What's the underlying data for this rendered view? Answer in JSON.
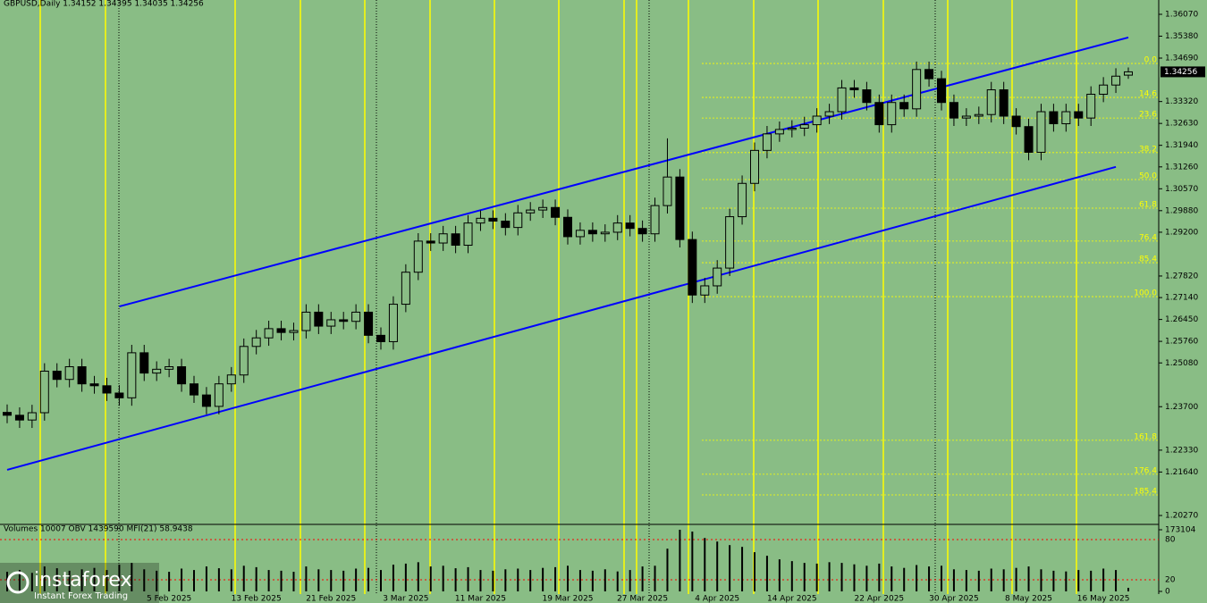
{
  "header": "GBPUSD,Daily  1.34152 1.34395 1.34035 1.34256",
  "watermark": {
    "brand": "instaforex",
    "tagline": "Instant Forex Trading"
  },
  "chart_data": [
    {
      "type": "candlestick",
      "last_price_label": "1.34256",
      "colors": {
        "up": "#89bd85",
        "down": "#000000",
        "outline": "#000000",
        "channel": "#0000ff",
        "fib": "#ffff00"
      },
      "categories": [
        null,
        null,
        null,
        null,
        null,
        null,
        null,
        null,
        null,
        null,
        null,
        null,
        null,
        "5 Feb 2025",
        null,
        null,
        null,
        null,
        null,
        null,
        "13 Feb 2025",
        null,
        null,
        null,
        null,
        null,
        "21 Feb 2025",
        null,
        null,
        null,
        null,
        null,
        "3 Mar 2025",
        null,
        null,
        null,
        null,
        null,
        "11 Mar 2025",
        null,
        null,
        null,
        null,
        null,
        null,
        "19 Mar 2025",
        null,
        null,
        null,
        null,
        null,
        "27 Mar 2025",
        null,
        null,
        null,
        null,
        null,
        "4 Apr 2025",
        null,
        null,
        null,
        null,
        null,
        "14 Apr 2025",
        null,
        null,
        null,
        null,
        null,
        null,
        "22 Apr 2025",
        null,
        null,
        null,
        null,
        null,
        "30 Apr 2025",
        null,
        null,
        null,
        null,
        null,
        "8 May 2025",
        null,
        null,
        null,
        null,
        null,
        "16 May 2025",
        null,
        null
      ],
      "open": [
        1.2352,
        1.2343,
        1.2328,
        1.2351,
        1.2482,
        1.2456,
        1.2496,
        1.2442,
        1.2436,
        1.2413,
        1.2398,
        1.254,
        1.2476,
        1.2488,
        1.2496,
        1.2442,
        1.2407,
        1.2371,
        1.2442,
        1.247,
        1.256,
        1.2587,
        1.2616,
        1.2604,
        1.261,
        1.2668,
        1.2624,
        1.2644,
        1.2639,
        1.2668,
        1.2595,
        1.2575,
        1.2693,
        1.2794,
        1.2892,
        1.2886,
        1.2915,
        1.2879,
        1.2949,
        1.2964,
        1.2955,
        1.2935,
        1.2981,
        1.299,
        1.2998,
        1.2967,
        1.2906,
        1.2926,
        1.2915,
        1.292,
        1.2949,
        1.2932,
        1.2915,
        1.3004,
        1.3094,
        1.2897,
        1.2722,
        1.2751,
        1.2807,
        1.2969,
        1.3074,
        1.3178,
        1.323,
        1.3244,
        1.3248,
        1.3259,
        1.3286,
        1.33,
        1.3375,
        1.3369,
        1.3329,
        1.3259,
        1.3329,
        1.3309,
        1.3433,
        1.3404,
        1.3329,
        1.328,
        1.3286,
        1.3291,
        1.3369,
        1.3286,
        1.3253,
        1.3172,
        1.33,
        1.3262,
        1.33,
        1.328,
        1.3355,
        1.3384,
        1.34152
      ],
      "close": [
        1.2343,
        1.2328,
        1.2351,
        1.2482,
        1.2456,
        1.2496,
        1.2442,
        1.2436,
        1.2413,
        1.2398,
        1.254,
        1.2476,
        1.2488,
        1.2496,
        1.2442,
        1.2407,
        1.2371,
        1.2442,
        1.247,
        1.256,
        1.2587,
        1.2616,
        1.2604,
        1.261,
        1.2668,
        1.2624,
        1.2644,
        1.2639,
        1.2668,
        1.2595,
        1.2575,
        1.2693,
        1.2794,
        1.2892,
        1.2886,
        1.2915,
        1.2879,
        1.2949,
        1.2964,
        1.2955,
        1.2935,
        1.2981,
        1.299,
        1.2998,
        1.2967,
        1.2906,
        1.2926,
        1.2915,
        1.292,
        1.2949,
        1.2932,
        1.2915,
        1.3004,
        1.3094,
        1.2897,
        1.2722,
        1.2751,
        1.2807,
        1.2969,
        1.3074,
        1.3178,
        1.323,
        1.3244,
        1.3248,
        1.3259,
        1.3286,
        1.33,
        1.3375,
        1.3369,
        1.3329,
        1.3259,
        1.3329,
        1.3309,
        1.3433,
        1.3404,
        1.3329,
        1.328,
        1.3286,
        1.3291,
        1.3369,
        1.3286,
        1.3253,
        1.3172,
        1.33,
        1.3262,
        1.33,
        1.328,
        1.3355,
        1.3384,
        1.3412,
        1.34256
      ],
      "high": [
        1.2377,
        1.2368,
        1.2376,
        1.2507,
        1.2507,
        1.2521,
        1.2521,
        1.2467,
        1.2461,
        1.2438,
        1.2565,
        1.2565,
        1.2513,
        1.2521,
        1.2521,
        1.2467,
        1.2432,
        1.2467,
        1.2495,
        1.2585,
        1.2612,
        1.2641,
        1.2641,
        1.2635,
        1.2693,
        1.2693,
        1.2669,
        1.2669,
        1.2693,
        1.2693,
        1.262,
        1.2718,
        1.2819,
        1.2917,
        1.2917,
        1.294,
        1.294,
        1.2974,
        1.2989,
        1.2989,
        1.298,
        1.3006,
        1.3015,
        1.3023,
        1.3023,
        1.2992,
        1.2951,
        1.2951,
        1.2945,
        1.2974,
        1.2974,
        1.2957,
        1.3029,
        1.3216,
        1.3119,
        1.2922,
        1.2776,
        1.2832,
        1.2994,
        1.3099,
        1.3203,
        1.3255,
        1.3269,
        1.3273,
        1.3284,
        1.3311,
        1.3325,
        1.34,
        1.34,
        1.3394,
        1.3354,
        1.3354,
        1.3354,
        1.3458,
        1.3458,
        1.3429,
        1.3354,
        1.3311,
        1.3316,
        1.3394,
        1.3394,
        1.3311,
        1.3278,
        1.3325,
        1.3325,
        1.3325,
        1.3325,
        1.338,
        1.3409,
        1.3437,
        1.34395
      ],
      "low": [
        1.2318,
        1.2303,
        1.2303,
        1.2326,
        1.2431,
        1.2431,
        1.2417,
        1.2411,
        1.2388,
        1.2373,
        1.2373,
        1.2451,
        1.2451,
        1.2463,
        1.2417,
        1.2382,
        1.2346,
        1.2346,
        1.2417,
        1.2445,
        1.2535,
        1.2562,
        1.2579,
        1.2579,
        1.2585,
        1.2599,
        1.2599,
        1.2614,
        1.2614,
        1.257,
        1.255,
        1.255,
        1.2668,
        1.2769,
        1.2861,
        1.2861,
        1.2854,
        1.2854,
        1.2924,
        1.293,
        1.291,
        1.291,
        1.2956,
        1.2965,
        1.2942,
        1.2881,
        1.2881,
        1.289,
        1.289,
        1.2895,
        1.2907,
        1.289,
        1.289,
        1.2979,
        1.2872,
        1.2697,
        1.2697,
        1.2726,
        1.2782,
        1.2944,
        1.3049,
        1.3153,
        1.3205,
        1.3219,
        1.3223,
        1.3234,
        1.3261,
        1.3275,
        1.3344,
        1.3304,
        1.3234,
        1.3234,
        1.3284,
        1.3284,
        1.3379,
        1.3304,
        1.3255,
        1.3255,
        1.3261,
        1.3266,
        1.3261,
        1.3228,
        1.3147,
        1.3147,
        1.3237,
        1.3237,
        1.3255,
        1.3255,
        1.333,
        1.3359,
        1.34035
      ],
      "ylim": [
        1.20046,
        1.36521
      ],
      "yticks": [
        {
          "value": 1.3607,
          "label": "1.36070"
        },
        {
          "value": 1.3538,
          "label": "1.35380"
        },
        {
          "value": 1.3469,
          "label": "1.34690"
        },
        {
          "value": 1.3332,
          "label": "1.33320"
        },
        {
          "value": 1.3263,
          "label": "1.32630"
        },
        {
          "value": 1.3194,
          "label": "1.31940"
        },
        {
          "value": 1.3126,
          "label": "1.31260"
        },
        {
          "value": 1.3057,
          "label": "1.30570"
        },
        {
          "value": 1.2988,
          "label": "1.29880"
        },
        {
          "value": 1.292,
          "label": "1.29200"
        },
        {
          "value": 1.2782,
          "label": "1.27820"
        },
        {
          "value": 1.2714,
          "label": "1.27140"
        },
        {
          "value": 1.2645,
          "label": "1.26450"
        },
        {
          "value": 1.2576,
          "label": "1.25760"
        },
        {
          "value": 1.2508,
          "label": "1.25080"
        },
        {
          "value": 1.237,
          "label": "1.23700"
        },
        {
          "value": 1.2233,
          "label": "1.22330"
        },
        {
          "value": 1.2164,
          "label": "1.21640"
        },
        {
          "value": 1.2027,
          "label": "1.20270"
        }
      ],
      "fib_levels": [
        {
          "label": "0.0",
          "value": 1.3452
        },
        {
          "label": "14.6",
          "value": 1.3345
        },
        {
          "label": "23.6",
          "value": 1.328
        },
        {
          "label": "38.2",
          "value": 1.3171
        },
        {
          "label": "50.0",
          "value": 1.3086
        },
        {
          "label": "61.8",
          "value": 1.2996
        },
        {
          "label": "76.4",
          "value": 1.2892
        },
        {
          "label": "85.4",
          "value": 1.2824
        },
        {
          "label": "100.0",
          "value": 1.2717
        },
        {
          "label": "161.8",
          "value": 1.2264
        },
        {
          "label": "176.4",
          "value": 1.2157
        },
        {
          "label": "185.4",
          "value": 1.2092
        }
      ],
      "channels": [
        {
          "x": [
            9,
            90
          ],
          "y": [
            1.2686,
            1.3534
          ]
        },
        {
          "x": [
            0,
            89
          ],
          "y": [
            1.2171,
            1.3126
          ]
        }
      ]
    },
    {
      "type": "bar",
      "indicator_header": "Volumes 10007  OBV 1439590  MFI(21) 58.9438",
      "color": "#000000",
      "values": [
        55000,
        60000,
        52000,
        70000,
        65000,
        58000,
        62000,
        66000,
        60000,
        75000,
        80000,
        62000,
        58000,
        55000,
        64000,
        60000,
        70000,
        65000,
        62000,
        72000,
        68000,
        60000,
        58000,
        55000,
        70000,
        62000,
        60000,
        58000,
        64000,
        66000,
        60000,
        75000,
        78000,
        82000,
        70000,
        72000,
        65000,
        68000,
        60000,
        58000,
        62000,
        64000,
        60000,
        66000,
        68000,
        72000,
        60000,
        58000,
        62000,
        56000,
        60000,
        70000,
        72000,
        120000,
        173104,
        168000,
        150000,
        140000,
        130000,
        125000,
        110000,
        100000,
        90000,
        85000,
        80000,
        78000,
        82000,
        80000,
        76000,
        72000,
        78000,
        70000,
        66000,
        74000,
        70000,
        72000,
        62000,
        60000,
        58000,
        64000,
        62000,
        66000,
        70000,
        62000,
        58000,
        56000,
        60000,
        58000,
        64000,
        60000,
        10007
      ],
      "ylim": [
        0,
        173104
      ],
      "yticks": [
        0,
        173104
      ],
      "mfi_ylim": [
        0,
        100
      ],
      "mfi_levels": [
        20,
        80
      ],
      "mfi_color": "#ff0000"
    }
  ]
}
